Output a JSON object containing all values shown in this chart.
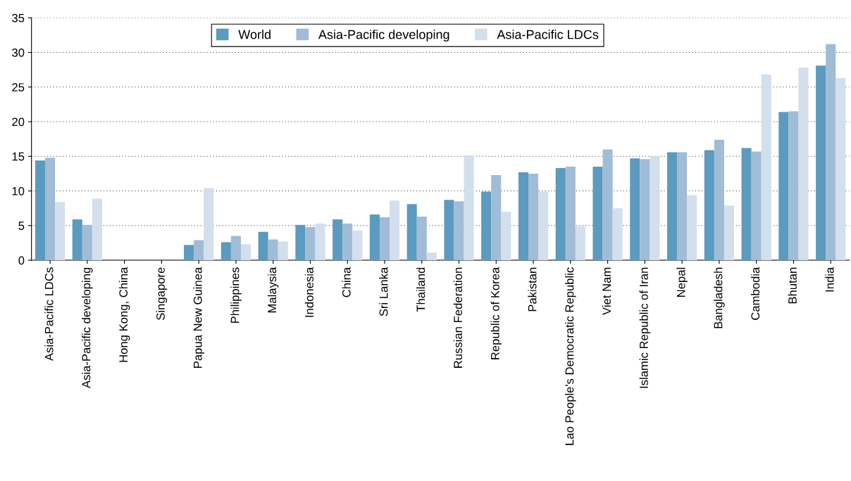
{
  "chart_data": {
    "type": "bar",
    "categories": [
      "Asia-Pacific LDCs",
      "Asia-Pacific developing",
      "Hong Kong, China",
      "Singapore",
      "Papua New Guinea",
      "Philippines",
      "Malaysia",
      "Indonesia",
      "China",
      "Sri Lanka",
      "Thailand",
      "Russian Federation",
      "Republic of Korea",
      "Pakistan",
      "Lao People's Democratic Republic",
      "Viet Nam",
      "Islamic Republic of Iran",
      "Nepal",
      "Bangladesh",
      "Cambodia",
      "Bhutan",
      "India"
    ],
    "series": [
      {
        "name": "World",
        "color": "#5a9bbf",
        "values": [
          14.4,
          5.9,
          0,
          0,
          2.2,
          2.6,
          4.1,
          5.1,
          5.9,
          6.6,
          8.1,
          8.7,
          9.9,
          12.7,
          13.3,
          13.5,
          14.7,
          15.6,
          15.9,
          16.2,
          21.4,
          28.1
        ]
      },
      {
        "name": "Asia-Pacific developing",
        "color": "#a0bcd6",
        "values": [
          14.8,
          5.1,
          0,
          0,
          2.9,
          3.5,
          3.0,
          4.8,
          5.3,
          6.2,
          6.3,
          8.5,
          12.3,
          12.5,
          13.5,
          16.0,
          14.6,
          15.6,
          17.4,
          15.7,
          21.5,
          31.2
        ]
      },
      {
        "name": "Asia-Pacific LDCs",
        "color": "#d3dfec",
        "values": [
          8.4,
          8.9,
          0,
          0,
          10.4,
          2.3,
          2.7,
          5.3,
          4.3,
          8.6,
          1.1,
          15.1,
          7.0,
          9.9,
          4.9,
          7.5,
          15.0,
          9.4,
          7.9,
          26.8,
          27.8,
          26.3
        ]
      }
    ],
    "ylim": [
      0,
      35
    ],
    "yticks": [
      0,
      5,
      10,
      15,
      20,
      25,
      30,
      35
    ],
    "grid": "y",
    "legend": "top"
  }
}
